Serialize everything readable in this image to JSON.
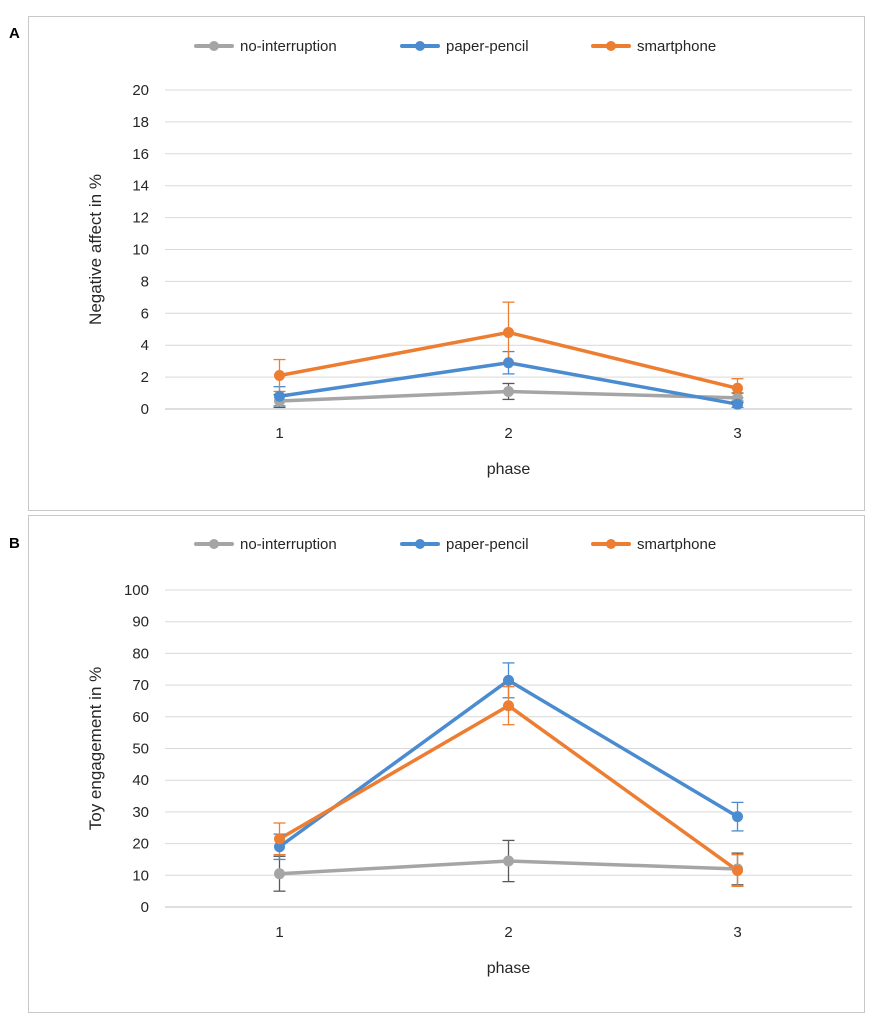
{
  "colors": {
    "no_interruption": "#a5a5a5",
    "paper_pencil": "#4a8ccf",
    "smartphone": "#ed7d31",
    "grid": "#d9d9d9",
    "axis": "#bfbfbf",
    "text": "#262626",
    "border": "#c8c8c8",
    "error_bar": "#595959"
  },
  "chart_data": [
    {
      "panel_label": "A",
      "type": "line",
      "title": "",
      "xlabel": "phase",
      "ylabel": "Negative affect in %",
      "categories": [
        "1",
        "2",
        "3"
      ],
      "ylim": [
        0,
        20
      ],
      "yticks": [
        "0",
        "2",
        "4",
        "6",
        "8",
        "10",
        "12",
        "14",
        "16",
        "18",
        "20"
      ],
      "grid": true,
      "legend_position": "top",
      "series": [
        {
          "name": "no-interruption",
          "color_key": "no_interruption",
          "values": [
            0.5,
            1.1,
            0.7
          ],
          "errors": [
            0.4,
            0.5,
            0.3
          ]
        },
        {
          "name": "paper-pencil",
          "color_key": "paper_pencil",
          "values": [
            0.8,
            2.9,
            0.3
          ],
          "errors": [
            0.6,
            0.7,
            0.2
          ]
        },
        {
          "name": "smartphone",
          "color_key": "smartphone",
          "values": [
            2.1,
            4.8,
            1.3
          ],
          "errors": [
            1.0,
            1.9,
            0.6
          ]
        }
      ]
    },
    {
      "panel_label": "B",
      "type": "line",
      "title": "",
      "xlabel": "phase",
      "ylabel": "Toy engagement in %",
      "categories": [
        "1",
        "2",
        "3"
      ],
      "ylim": [
        0,
        100
      ],
      "yticks": [
        "0",
        "10",
        "20",
        "30",
        "40",
        "50",
        "60",
        "70",
        "80",
        "90",
        "100"
      ],
      "grid": true,
      "legend_position": "top",
      "series": [
        {
          "name": "no-interruption",
          "color_key": "no_interruption",
          "values": [
            10.5,
            14.5,
            12
          ],
          "errors": [
            5.5,
            6.5,
            5
          ]
        },
        {
          "name": "paper-pencil",
          "color_key": "paper_pencil",
          "values": [
            19,
            71.5,
            28.5
          ],
          "errors": [
            4,
            5.5,
            4.5
          ]
        },
        {
          "name": "smartphone",
          "color_key": "smartphone",
          "values": [
            21.5,
            63.5,
            11.5
          ],
          "errors": [
            5,
            6,
            5
          ]
        }
      ]
    }
  ]
}
